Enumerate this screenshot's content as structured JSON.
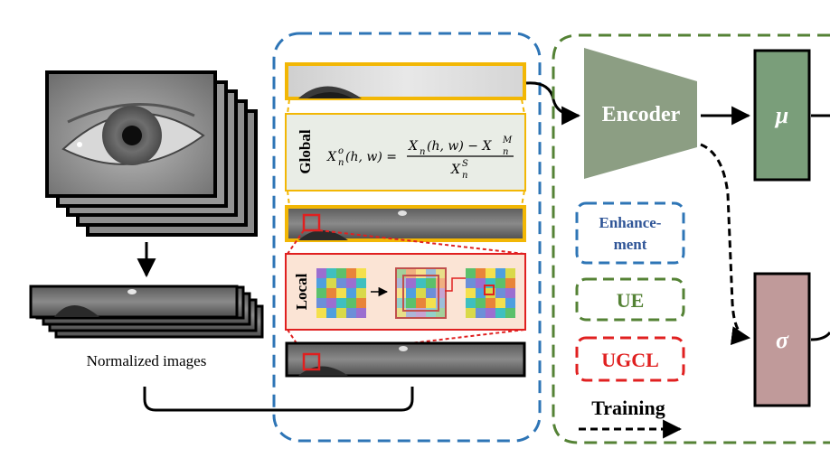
{
  "input": {
    "caption": "Normalized images"
  },
  "enhancement": {
    "global_label": "Global",
    "local_label": "Local",
    "formula": {
      "lhs": "X",
      "lhs_sub": "n",
      "lhs_sup": "o",
      "lhs_args": "(h, w) =",
      "num_a": "X",
      "num_a_sub": "n",
      "num_a_args": "(h, w) − X",
      "num_b_sub": "n",
      "num_b_sup": "M",
      "den": "X",
      "den_sub": "n",
      "den_sup": "S"
    }
  },
  "network": {
    "encoder_label": "Encoder",
    "mu_label": "μ",
    "sigma_label": "σ"
  },
  "legend": {
    "enhancement_line1": "Enhance-",
    "enhancement_line2": "ment",
    "ue": "UE",
    "ugcl": "UGCL",
    "training": "Training"
  },
  "colors": {
    "blue_dashed": "#2e75b6",
    "green_dashed": "#548235",
    "red_dashed": "#e02020",
    "encoder_fill": "#8c9e83",
    "mu_fill": "#7a9e7a",
    "sigma_fill": "#c09a9a",
    "global_bg": "#e9ede6",
    "local_bg": "#fbe4d5",
    "yellow_border": "#f2b705",
    "crop_red": "#e02020",
    "enhancement_text": "#2f5597",
    "ue_text": "#548235",
    "ugcl_text": "#e02020"
  }
}
